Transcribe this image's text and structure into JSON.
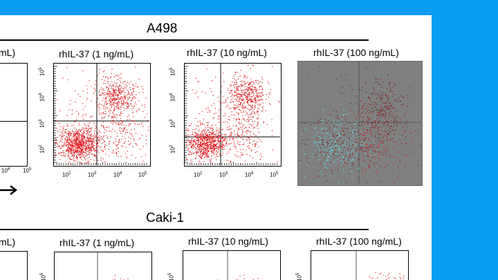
{
  "colors": {
    "background": "#0a9cf0",
    "slide": "#ffffff",
    "dots": "#e0191f",
    "dots_dark": "#7a1818",
    "dots_cyan": "#62e2ea",
    "panel_shaded": "#7f7f7f"
  },
  "sections": {
    "top_title": "A498",
    "bottom_title": "Caki-1"
  },
  "top_row": {
    "partial_label": "mL)",
    "panels": [
      {
        "label": "rhIL-37 (1 ng/mL)",
        "shaded": false,
        "density": [
          0.55,
          0.05,
          0.3,
          0.1
        ]
      },
      {
        "label": "rhIL-37 (10 ng/mL)",
        "shaded": false,
        "density": [
          0.45,
          0.07,
          0.38,
          0.1
        ]
      },
      {
        "label": "rhIL-37 (100 ng/mL)",
        "shaded": true,
        "density": [
          0.4,
          0.1,
          0.35,
          0.15
        ]
      }
    ]
  },
  "bottom_row": {
    "partial_label": "mL)",
    "panels": [
      {
        "label": "rhIL-37 (1 ng/mL)"
      },
      {
        "label": "rhIL-37 (10 ng/mL)"
      },
      {
        "label": "rhIL-37 (100 ng/mL)"
      }
    ]
  },
  "axis": {
    "base": "10",
    "exponents": [
      "2",
      "3",
      "4",
      "5"
    ]
  },
  "icons": [
    "right-arrow-icon"
  ]
}
